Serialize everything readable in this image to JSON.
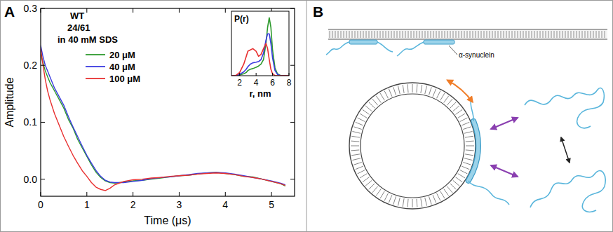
{
  "chart_data": [
    {
      "type": "line",
      "panel_label": "A",
      "annotations": [
        "WT",
        "24/61",
        "in 40 mM SDS"
      ],
      "x_label": "Time (μs)",
      "y_label": "Amplitude",
      "x": [
        0,
        0.05,
        0.1,
        0.15,
        0.2,
        0.3,
        0.4,
        0.5,
        0.6,
        0.7,
        0.8,
        0.9,
        1.0,
        1.1,
        1.2,
        1.3,
        1.4,
        1.5,
        1.6,
        1.8,
        2.0,
        2.2,
        2.4,
        2.6,
        2.8,
        3.0,
        3.2,
        3.4,
        3.6,
        3.8,
        4.0,
        4.2,
        4.4,
        4.6,
        4.8,
        5.0,
        5.2,
        5.3
      ],
      "series": [
        {
          "name": "20 μM",
          "color": "#2e9a2e",
          "values": [
            0.22,
            0.205,
            0.19,
            0.18,
            0.17,
            0.155,
            0.14,
            0.125,
            0.105,
            0.09,
            0.07,
            0.055,
            0.04,
            0.025,
            0.012,
            0.003,
            -0.003,
            -0.006,
            -0.007,
            -0.005,
            -0.003,
            -0.002,
            0.0,
            0.002,
            0.004,
            0.006,
            0.007,
            0.009,
            0.011,
            0.012,
            0.01,
            0.008,
            0.005,
            0.004,
            0.0,
            -0.004,
            -0.008,
            -0.012
          ]
        },
        {
          "name": "40 μM",
          "color": "#3a3ae0",
          "values": [
            0.235,
            0.215,
            0.2,
            0.19,
            0.18,
            0.16,
            0.145,
            0.13,
            0.11,
            0.092,
            0.075,
            0.058,
            0.042,
            0.028,
            0.015,
            0.005,
            -0.002,
            -0.005,
            -0.006,
            -0.006,
            -0.004,
            -0.002,
            0.001,
            0.003,
            0.004,
            0.006,
            0.008,
            0.01,
            0.011,
            0.012,
            0.011,
            0.009,
            0.006,
            0.003,
            0.0,
            -0.003,
            -0.007,
            -0.01
          ]
        },
        {
          "name": "100 μM",
          "color": "#e83030",
          "values": [
            0.23,
            0.2,
            0.175,
            0.155,
            0.14,
            0.115,
            0.095,
            0.075,
            0.058,
            0.042,
            0.028,
            0.015,
            0.005,
            -0.006,
            -0.014,
            -0.018,
            -0.02,
            -0.016,
            -0.01,
            -0.004,
            -0.001,
            0.0,
            0.002,
            0.003,
            0.005,
            0.006,
            0.007,
            0.009,
            0.01,
            0.011,
            0.01,
            0.008,
            0.005,
            0.003,
            0.0,
            -0.004,
            -0.008,
            -0.011
          ]
        }
      ],
      "xlim": [
        0,
        5.5
      ],
      "xticks": [
        0,
        1,
        2,
        3,
        4,
        5
      ],
      "ylim": [
        -0.03,
        0.3
      ],
      "yticks": [
        {
          "value": 0,
          "label": "0.0"
        },
        0.1,
        0.2,
        0.3
      ],
      "legend": "top"
    },
    {
      "type": "line",
      "x_label": "r, nm",
      "y_label": "P(r)",
      "x": [
        1,
        1.5,
        2,
        2.5,
        2.8,
        3.0,
        3.3,
        3.6,
        4.0,
        4.3,
        4.6,
        4.9,
        5.2,
        5.4,
        5.6,
        5.8,
        6.0,
        6.3,
        6.6,
        7,
        7.5,
        8
      ],
      "series": [
        {
          "color": "#2e9a2e",
          "values": [
            0,
            0,
            0.01,
            0.03,
            0.05,
            0.08,
            0.1,
            0.11,
            0.13,
            0.15,
            0.18,
            0.25,
            0.5,
            0.75,
            0.9,
            0.75,
            0.4,
            0.12,
            0.03,
            0,
            0,
            0
          ]
        },
        {
          "color": "#3a3ae0",
          "values": [
            0,
            0,
            0.02,
            0.06,
            0.1,
            0.14,
            0.18,
            0.2,
            0.21,
            0.22,
            0.25,
            0.35,
            0.55,
            0.65,
            0.65,
            0.5,
            0.28,
            0.08,
            0.02,
            0,
            0,
            0
          ]
        },
        {
          "color": "#e83030",
          "values": [
            0,
            0,
            0.05,
            0.18,
            0.3,
            0.38,
            0.4,
            0.42,
            0.38,
            0.3,
            0.33,
            0.42,
            0.5,
            0.42,
            0.25,
            0.1,
            0.03,
            0,
            0,
            0,
            0,
            0
          ]
        }
      ],
      "xlim": [
        1,
        8
      ],
      "xticks": [
        2,
        4,
        6,
        8
      ],
      "ylim": [
        0,
        1
      ],
      "tick_labels": "x"
    }
  ],
  "diagram": {
    "panel_label": "B",
    "label": "α-synuclein"
  }
}
